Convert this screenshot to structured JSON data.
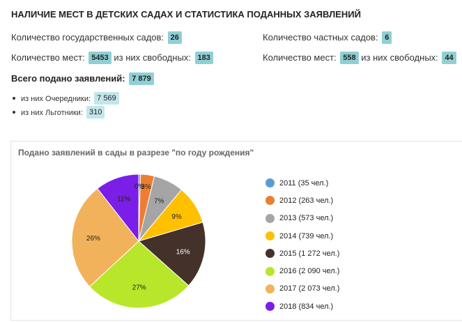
{
  "header": {
    "title": "НАЛИЧИЕ МЕСТ В ДЕТСКИХ САДАХ И СТАТИСТИКА ПОДАННЫХ ЗАЯВЛЕНИЙ"
  },
  "gov": {
    "count_label": "Количество государственных садов:",
    "count": "26",
    "places_label": "Количество мест:",
    "places": "5453",
    "free_label": "из них свободных:",
    "free": "183"
  },
  "priv": {
    "count_label": "Количество частных садов:",
    "count": "6",
    "places_label": "Количество мест:",
    "places": "558",
    "free_label": "из них свободных:",
    "free": "44"
  },
  "total": {
    "label": "Всего подано заявлений:",
    "value": "7 879",
    "items": [
      {
        "label": "из них Очередники:",
        "value": "7 569"
      },
      {
        "label": "из них Льготники:",
        "value": "310"
      }
    ]
  },
  "chart_data": {
    "type": "pie",
    "title": "Подано заявлений в сады в разрезе \"по году рождения\"",
    "labels": [
      "2011",
      "2012",
      "2013",
      "2014",
      "2015",
      "2016",
      "2017",
      "2018"
    ],
    "values": [
      35,
      263,
      573,
      739,
      1272,
      2090,
      2073,
      834
    ],
    "unit": "чел.",
    "legend_text": [
      "2011 (35 чел.)",
      "2012 (263 чел.)",
      "2013 (573 чел.)",
      "2014 (739 чел.)",
      "2015 (1 272 чел.)",
      "2016 (2 090 чел.)",
      "2017 (2 073 чел.)",
      "2018 (834 чел.)"
    ],
    "slice_labels": [
      "0%",
      "3%",
      "7%",
      "9%",
      "16%",
      "27%",
      "26%",
      "11%"
    ],
    "colors": [
      "#5b9bd5",
      "#ed7d31",
      "#a5a5a5",
      "#ffc000",
      "#44312a",
      "#b8e62b",
      "#f2b25c",
      "#7b1ee8"
    ],
    "legend": "right"
  }
}
